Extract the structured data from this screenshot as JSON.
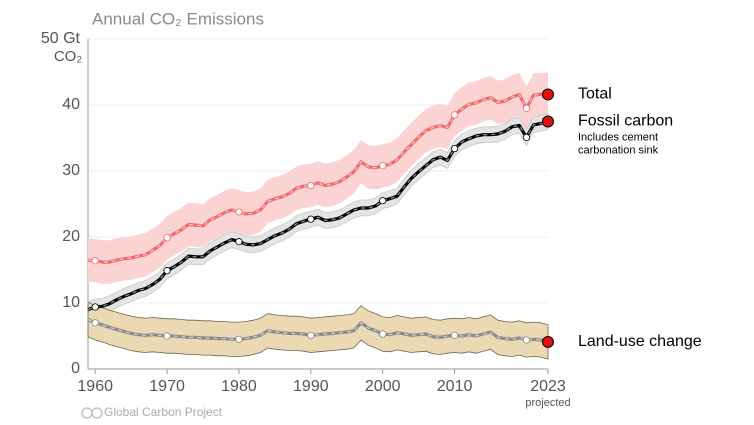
{
  "chart_data": {
    "type": "line",
    "title": "Annual CO₂ Emissions",
    "y_unit": "CO₂",
    "x_note": "projected",
    "footer": "Global Carbon Project",
    "xlim": [
      1959,
      2023
    ],
    "ylim": [
      0,
      50
    ],
    "xticks": [
      1960,
      1970,
      1980,
      1990,
      2000,
      2010,
      2023
    ],
    "yticks": [
      0,
      10,
      20,
      30,
      40,
      {
        "value": 50,
        "label": "50 Gt"
      }
    ],
    "grid": true,
    "x": [
      1959,
      1960,
      1961,
      1962,
      1963,
      1964,
      1965,
      1966,
      1967,
      1968,
      1969,
      1970,
      1971,
      1972,
      1973,
      1974,
      1975,
      1976,
      1977,
      1978,
      1979,
      1980,
      1981,
      1982,
      1983,
      1984,
      1985,
      1986,
      1987,
      1988,
      1989,
      1990,
      1991,
      1992,
      1993,
      1994,
      1995,
      1996,
      1997,
      1998,
      1999,
      2000,
      2001,
      2002,
      2003,
      2004,
      2005,
      2006,
      2007,
      2008,
      2009,
      2010,
      2011,
      2012,
      2013,
      2014,
      2015,
      2016,
      2017,
      2018,
      2019,
      2020,
      2021,
      2022,
      2023
    ],
    "series": [
      {
        "name": "Total",
        "color": "#ee6b6e",
        "band_color": "#fcd3d3",
        "error": 3.3,
        "values": [
          16.5,
          16.4,
          16.2,
          16.2,
          16.5,
          16.7,
          16.8,
          17.1,
          17.3,
          18.0,
          18.7,
          19.9,
          20.5,
          21.1,
          21.9,
          21.8,
          21.7,
          22.6,
          23.1,
          23.7,
          24.1,
          23.8,
          23.5,
          23.6,
          24.1,
          25.4,
          25.8,
          26.1,
          26.6,
          27.4,
          27.7,
          27.8,
          28.2,
          27.8,
          28.0,
          28.4,
          29.1,
          29.9,
          31.4,
          30.6,
          30.5,
          30.8,
          31.0,
          31.7,
          32.9,
          34.0,
          35.1,
          36.1,
          36.6,
          36.9,
          36.6,
          38.5,
          39.4,
          40.1,
          40.3,
          40.8,
          41.1,
          40.4,
          40.6,
          41.2,
          41.6,
          39.5,
          41.5,
          41.6,
          41.6
        ]
      },
      {
        "name": "Fossil carbon",
        "note": [
          "Includes cement",
          "carbonation sink"
        ],
        "color": "#000000",
        "band_color": "#e4e4e4",
        "error": 1.2,
        "values": [
          9.0,
          9.4,
          9.5,
          9.9,
          10.5,
          11.0,
          11.4,
          11.9,
          12.2,
          12.8,
          13.6,
          14.9,
          15.5,
          16.2,
          17.1,
          17.0,
          17.0,
          17.9,
          18.5,
          19.1,
          19.6,
          19.3,
          18.9,
          18.8,
          19.0,
          19.6,
          20.2,
          20.6,
          21.2,
          22.0,
          22.4,
          22.7,
          23.0,
          22.5,
          22.6,
          22.9,
          23.5,
          24.1,
          24.4,
          24.4,
          24.7,
          25.5,
          25.8,
          26.2,
          27.6,
          28.9,
          29.9,
          30.8,
          31.7,
          32.1,
          31.6,
          33.4,
          34.4,
          34.9,
          35.3,
          35.5,
          35.5,
          35.6,
          36.0,
          36.7,
          36.9,
          35.1,
          37.0,
          37.2,
          37.5
        ]
      },
      {
        "name": "Land-use change",
        "color": "#8a8a8a",
        "band_color": "#ead9b3",
        "error": 2.6,
        "values": [
          7.5,
          7.0,
          6.7,
          6.3,
          6.0,
          5.7,
          5.4,
          5.2,
          5.1,
          5.2,
          5.1,
          5.0,
          5.0,
          4.9,
          4.8,
          4.8,
          4.7,
          4.7,
          4.6,
          4.6,
          4.5,
          4.5,
          4.6,
          4.8,
          5.1,
          5.8,
          5.6,
          5.5,
          5.4,
          5.4,
          5.3,
          5.1,
          5.2,
          5.3,
          5.4,
          5.5,
          5.6,
          5.8,
          7.0,
          6.2,
          5.8,
          5.3,
          5.2,
          5.5,
          5.3,
          5.1,
          5.2,
          5.3,
          4.9,
          4.8,
          5.0,
          5.1,
          5.0,
          5.2,
          5.0,
          5.3,
          5.6,
          4.8,
          4.6,
          4.5,
          4.7,
          4.4,
          4.5,
          4.4,
          4.1
        ]
      }
    ]
  }
}
